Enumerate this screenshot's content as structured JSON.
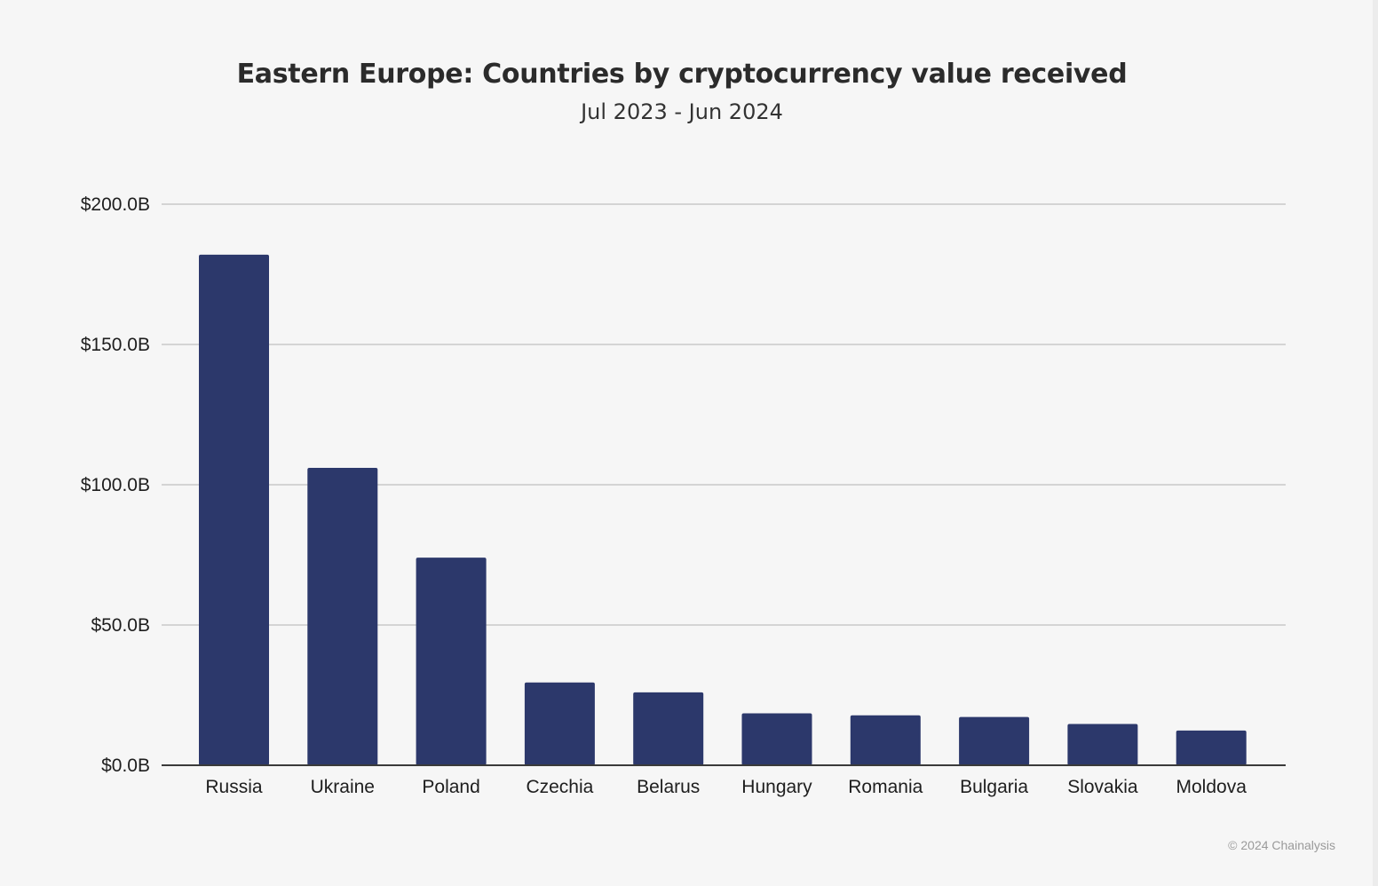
{
  "chart_data": {
    "type": "bar",
    "title": "Eastern Europe: Countries by cryptocurrency value received",
    "subtitle": "Jul 2023 - Jun 2024",
    "categories": [
      "Russia",
      "Ukraine",
      "Poland",
      "Czechia",
      "Belarus",
      "Hungary",
      "Romania",
      "Bulgaria",
      "Slovakia",
      "Moldova"
    ],
    "values": [
      182.0,
      106.0,
      74.0,
      29.5,
      26.0,
      18.5,
      17.8,
      17.2,
      14.7,
      12.4
    ],
    "ylim": [
      0,
      200
    ],
    "yticks": [
      0,
      50,
      100,
      150,
      200
    ],
    "ytick_labels": [
      "$0.0B",
      "$50.0B",
      "$100.0B",
      "$150.0B",
      "$200.0B"
    ],
    "grid": true,
    "bar_color": "#2c386b",
    "grid_color": "#d4d4d4",
    "axis_color": "#3a3a3a"
  },
  "footer": {
    "copyright": "© 2024 Chainalysis"
  }
}
